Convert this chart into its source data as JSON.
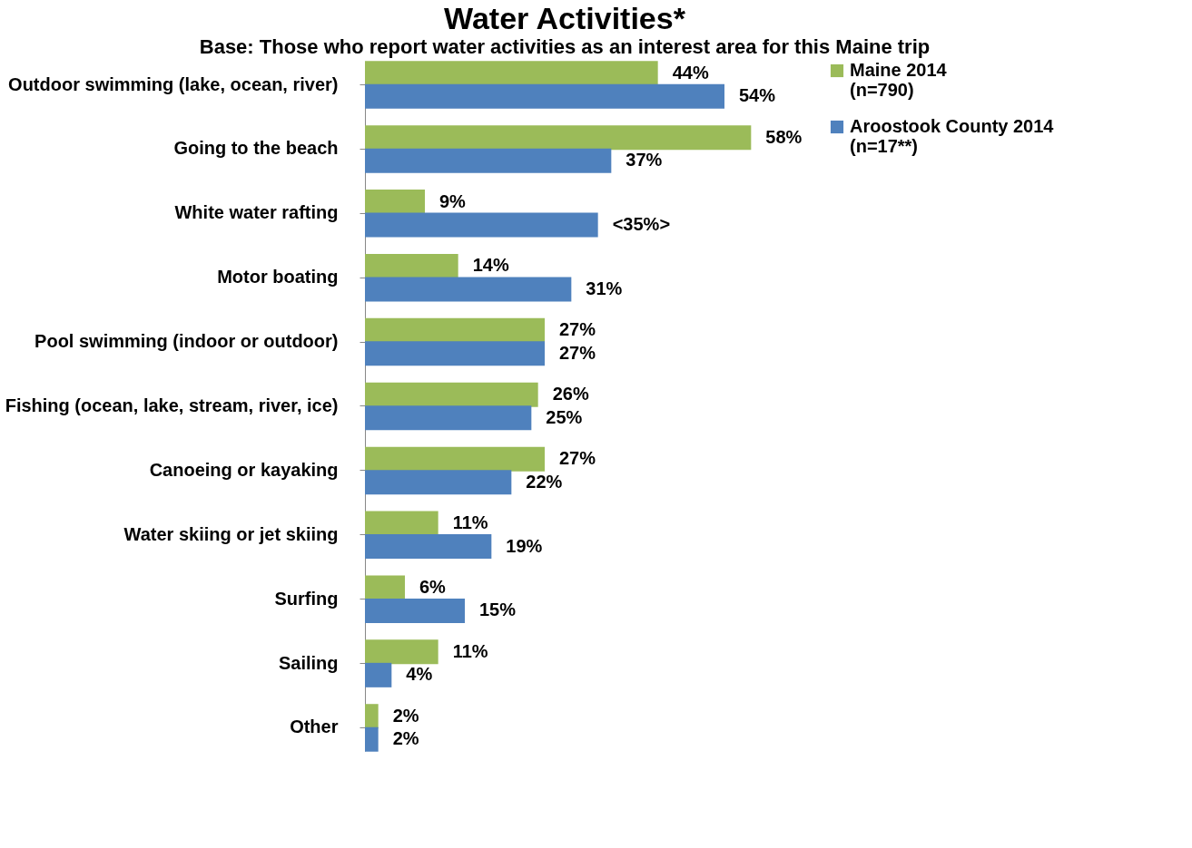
{
  "chart_data": {
    "type": "bar",
    "orientation": "horizontal",
    "title": "Water Activities*",
    "subtitle": "Base: Those who report water activities as an interest area for this Maine trip",
    "categories": [
      "Outdoor swimming (lake, ocean, river)",
      "Going to the beach",
      "White water rafting",
      "Motor boating",
      "Pool swimming (indoor or outdoor)",
      "Fishing (ocean, lake, stream, river, ice)",
      "Canoeing or kayaking",
      "Water skiing or jet skiing",
      "Surfing",
      "Sailing",
      "Other"
    ],
    "series": [
      {
        "name": "Maine 2014 (n=790)",
        "color": "#9bbb59",
        "values": [
          44,
          58,
          9,
          14,
          27,
          26,
          27,
          11,
          6,
          11,
          2
        ],
        "value_labels": [
          "44%",
          "58%",
          "9%",
          "14%",
          "27%",
          "26%",
          "27%",
          "11%",
          "6%",
          "11%",
          "2%"
        ]
      },
      {
        "name": "Aroostook County 2014 (n=17**)",
        "color": "#4f81bd",
        "values": [
          54,
          37,
          35,
          31,
          27,
          25,
          22,
          19,
          15,
          4,
          2
        ],
        "value_labels": [
          "54%",
          "37%",
          "<35%>",
          "31%",
          "27%",
          "25%",
          "22%",
          "19%",
          "15%",
          "4%",
          "2%"
        ]
      }
    ],
    "tick_labels": "y",
    "grid": false,
    "legend": "right"
  }
}
